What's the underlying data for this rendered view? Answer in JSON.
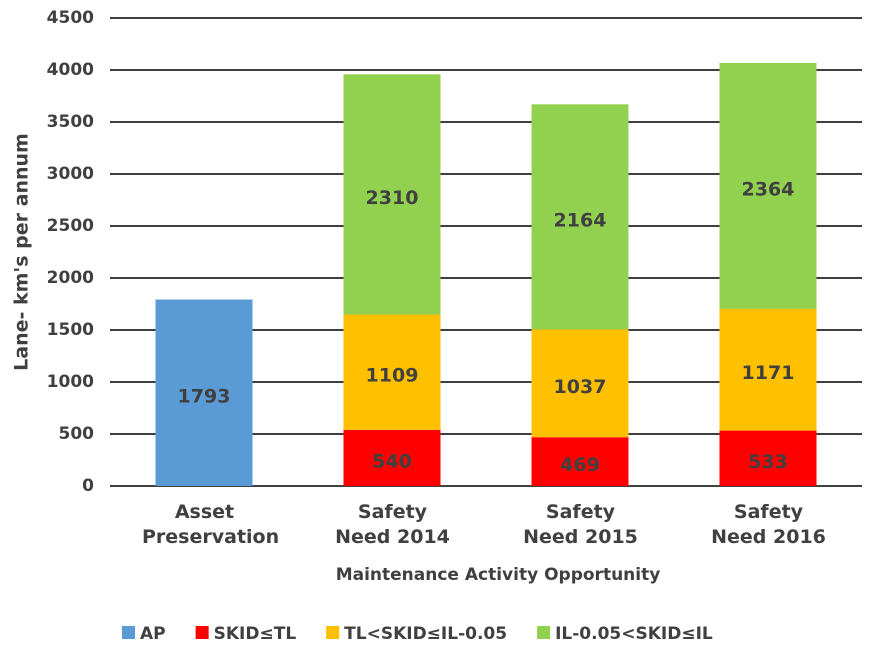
{
  "chart_data": {
    "type": "stacked_bar",
    "categories": [
      "Asset Preservation",
      "Safety Need 2014",
      "Safety Need 2015",
      "Safety Need 2016"
    ],
    "series": [
      {
        "name": "AP",
        "color": "#5b9bd5",
        "values": [
          1793,
          null,
          null,
          null
        ]
      },
      {
        "name": "SKID≤TL",
        "color": "#ff0000",
        "values": [
          null,
          540,
          469,
          533
        ]
      },
      {
        "name": "TL<SKID≤IL-0.05",
        "color": "#ffc000",
        "values": [
          null,
          1109,
          1037,
          1171
        ]
      },
      {
        "name": "IL-0.05<SKID≤IL",
        "color": "#92d050",
        "values": [
          null,
          2310,
          2164,
          2364
        ]
      }
    ],
    "ylim": [
      0,
      4500
    ],
    "yticks": [
      0,
      500,
      1000,
      1500,
      2000,
      2500,
      3000,
      3500,
      4000,
      4500
    ],
    "y_label": "Lane- km's per annum",
    "x_label": "Maintenance Activity Opportunity",
    "grid": true,
    "legend": "bottom"
  }
}
